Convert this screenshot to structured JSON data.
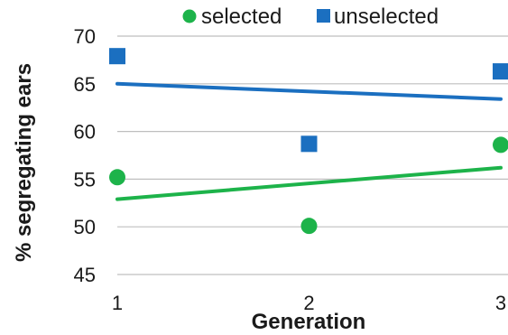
{
  "chart_data": {
    "type": "scatter",
    "title": "",
    "xlabel": "Generation",
    "ylabel": "% segregating ears",
    "x": [
      1,
      2,
      3
    ],
    "x_tick_labels": [
      "1",
      "2",
      "3"
    ],
    "xlim": [
      1,
      3
    ],
    "ylim": [
      45,
      70
    ],
    "y_ticks": [
      45,
      50,
      55,
      60,
      65,
      70
    ],
    "y_tick_labels": [
      "45",
      "50",
      "55",
      "60",
      "65",
      "70"
    ],
    "grid": "horizontal",
    "legend_position": "top",
    "series": [
      {
        "name": "selected",
        "color": "#1db34a",
        "marker": "circle",
        "values": [
          55.2,
          50.1,
          58.6
        ],
        "trendline": [
          52.9,
          56.2
        ]
      },
      {
        "name": "unselected",
        "color": "#1b6fc0",
        "marker": "square",
        "values": [
          67.9,
          58.7,
          66.3
        ],
        "trendline": [
          65.0,
          63.4
        ]
      }
    ]
  }
}
